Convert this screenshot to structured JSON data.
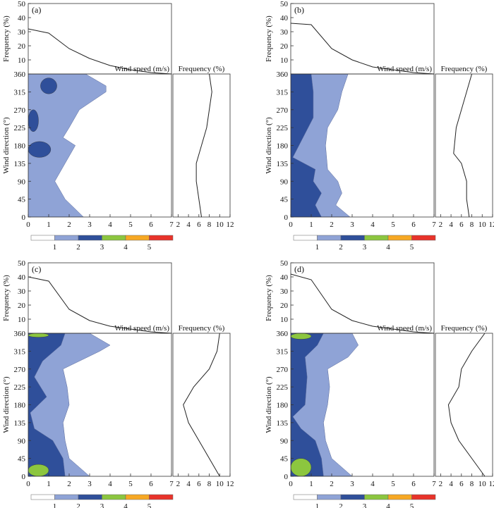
{
  "figure": {
    "colors": {
      "axis": "#333333",
      "zone1": "#ffffff",
      "zone2": "#8fa3d6",
      "zone3": "#2f4f9a",
      "zone4": "#8cc63f",
      "zone5": "#f7a823",
      "zone6": "#e8332a"
    }
  },
  "panels": [
    {
      "tag": "(a)",
      "top": {
        "ylabel": "Frequency (%)",
        "yticks": [
          "0",
          "10",
          "20",
          "30",
          "40",
          "50"
        ],
        "xlabel": "Wind speed (m/s)"
      },
      "main": {
        "ylabel": "Wind direction (°)",
        "yticks": [
          "0",
          "45",
          "90",
          "135",
          "180",
          "225",
          "270",
          "315",
          "360"
        ],
        "xticks": [
          "0",
          "1",
          "2",
          "3",
          "4",
          "5",
          "6",
          "7"
        ]
      },
      "right": {
        "title": "Frequency (%)",
        "xticks": [
          "2",
          "4",
          "6",
          "8",
          "10",
          "12"
        ]
      },
      "legend": {
        "labels": [
          "1",
          "2",
          "3",
          "4",
          "5"
        ]
      }
    },
    {
      "tag": "(b)",
      "top": {
        "ylabel": "Frequency (%)",
        "yticks": [
          "0",
          "10",
          "20",
          "30",
          "40",
          "50"
        ],
        "xlabel": "Wind speed (m/s)"
      },
      "main": {
        "ylabel": "Wind direction (°)",
        "yticks": [
          "0",
          "45",
          "90",
          "135",
          "180",
          "225",
          "270",
          "315",
          "360"
        ],
        "xticks": [
          "0",
          "1",
          "2",
          "3",
          "4",
          "5",
          "6",
          "7"
        ]
      },
      "right": {
        "title": "Frequency (%)",
        "xticks": [
          "2",
          "4",
          "6",
          "8",
          "10",
          "12"
        ]
      },
      "legend": {
        "labels": [
          "1",
          "2",
          "3",
          "4",
          "5"
        ]
      }
    },
    {
      "tag": "(c)",
      "top": {
        "ylabel": "Frequency (%)",
        "yticks": [
          "0",
          "10",
          "20",
          "30",
          "40",
          "50"
        ],
        "xlabel": "Wind speed (m/s)"
      },
      "main": {
        "ylabel": "Wind direction (°)",
        "yticks": [
          "0",
          "45",
          "90",
          "135",
          "180",
          "225",
          "270",
          "315",
          "360"
        ],
        "xticks": [
          "0",
          "1",
          "2",
          "3",
          "4",
          "5",
          "6",
          "7"
        ]
      },
      "right": {
        "title": "Frequency (%)",
        "xticks": [
          "2",
          "4",
          "6",
          "8",
          "10",
          "12"
        ]
      },
      "legend": {
        "labels": [
          "1",
          "2",
          "3",
          "4",
          "5"
        ]
      }
    },
    {
      "tag": "(d)",
      "top": {
        "ylabel": "Frequency (%)",
        "yticks": [
          "0",
          "10",
          "20",
          "30",
          "40",
          "50"
        ],
        "xlabel": "Wind speed (m/s)"
      },
      "main": {
        "ylabel": "Wind direction (°)",
        "yticks": [
          "0",
          "45",
          "90",
          "135",
          "180",
          "225",
          "270",
          "315",
          "360"
        ],
        "xticks": [
          "0",
          "1",
          "2",
          "3",
          "4",
          "5",
          "6",
          "7"
        ]
      },
      "right": {
        "title": "Frequency (%)",
        "xticks": [
          "2",
          "4",
          "6",
          "8",
          "10",
          "12"
        ]
      },
      "legend": {
        "labels": [
          "1",
          "2",
          "3",
          "4",
          "5"
        ]
      }
    }
  ],
  "chart_data": [
    {
      "panel": "(a)",
      "type": "contour",
      "top_line": {
        "x": [
          0,
          1,
          2,
          3,
          4,
          5,
          6,
          7
        ],
        "y": [
          32,
          29,
          18,
          11,
          6,
          3,
          1,
          0
        ],
        "ylim": [
          0,
          50
        ],
        "xlim": [
          0,
          7
        ]
      },
      "right_line": {
        "x": [
          6.5,
          6.0,
          5.5,
          5.5,
          6.5,
          7.5,
          8.0,
          8.5,
          8.0
        ],
        "y": [
          0,
          45,
          90,
          135,
          180,
          225,
          270,
          315,
          360
        ],
        "xlim": [
          1,
          12
        ],
        "ylim": [
          0,
          360
        ]
      },
      "level2_edge": {
        "dir": [
          0,
          45,
          90,
          135,
          180,
          200,
          225,
          270,
          315,
          330,
          360
        ],
        "speed": [
          2.7,
          1.8,
          1.3,
          1.8,
          2.3,
          1.7,
          2.0,
          2.5,
          3.8,
          3.8,
          2.8
        ]
      },
      "level3_blobs": [
        {
          "dir": [
            150,
            190
          ],
          "speed": [
            0,
            1.1
          ]
        },
        {
          "dir": [
            215,
            270
          ],
          "speed": [
            0,
            0.5
          ]
        },
        {
          "dir": [
            310,
            350
          ],
          "speed": [
            0.6,
            1.4
          ]
        }
      ]
    },
    {
      "panel": "(b)",
      "type": "contour",
      "top_line": {
        "x": [
          0,
          1,
          2,
          3,
          4,
          5,
          6,
          7
        ],
        "y": [
          36,
          35,
          18,
          10,
          5,
          3,
          1,
          0
        ],
        "ylim": [
          0,
          50
        ],
        "xlim": [
          0,
          7
        ]
      },
      "right_line": {
        "x": [
          7.5,
          7.0,
          7.0,
          6.0,
          4.5,
          5.0,
          6.0,
          7.0,
          8.0
        ],
        "y": [
          0,
          45,
          90,
          135,
          160,
          225,
          270,
          315,
          360
        ],
        "xlim": [
          1,
          12
        ],
        "ylim": [
          0,
          360
        ]
      },
      "level2_edge": {
        "dir": [
          0,
          30,
          60,
          90,
          120,
          180,
          225,
          270,
          315,
          360
        ],
        "speed": [
          2.9,
          2.2,
          2.5,
          2.3,
          1.8,
          1.7,
          1.8,
          2.3,
          2.5,
          2.8
        ]
      },
      "level3_edge": {
        "dir": [
          0,
          30,
          60,
          90,
          120,
          150,
          250,
          270,
          315,
          360
        ],
        "speed": [
          1.5,
          1.2,
          1.5,
          1.1,
          1.2,
          0.1,
          1.1,
          1.1,
          1.1,
          1.0
        ]
      }
    },
    {
      "panel": "(c)",
      "type": "contour",
      "top_line": {
        "x": [
          0,
          1,
          2,
          3,
          4,
          5,
          6,
          7
        ],
        "y": [
          40,
          37,
          17,
          9,
          5,
          3,
          1,
          0
        ],
        "ylim": [
          0,
          50
        ],
        "xlim": [
          0,
          7
        ]
      },
      "right_line": {
        "x": [
          10.0,
          8.0,
          6.0,
          4.0,
          3.0,
          5.0,
          8.0,
          9.5,
          10.0
        ],
        "y": [
          0,
          45,
          90,
          135,
          180,
          225,
          270,
          315,
          360
        ],
        "xlim": [
          1,
          12
        ],
        "ylim": [
          0,
          360
        ]
      },
      "level2_edge": {
        "dir": [
          0,
          45,
          90,
          135,
          180,
          225,
          270,
          315,
          330,
          360
        ],
        "speed": [
          3.0,
          2.0,
          1.8,
          1.7,
          2.0,
          1.9,
          1.7,
          3.5,
          4.0,
          3.0
        ]
      },
      "level3_edge": {
        "dir": [
          0,
          45,
          90,
          120,
          160,
          200,
          250,
          290,
          330,
          360
        ],
        "speed": [
          1.8,
          1.7,
          1.2,
          0.3,
          0.1,
          0.9,
          0.3,
          0.7,
          1.6,
          1.8
        ]
      },
      "level4_blobs": [
        {
          "dir": [
            0,
            30
          ],
          "speed": [
            0,
            1.0
          ]
        },
        {
          "dir": [
            350,
            360
          ],
          "speed": [
            0,
            1.0
          ]
        }
      ]
    },
    {
      "panel": "(d)",
      "type": "contour",
      "top_line": {
        "x": [
          0,
          1,
          2,
          3,
          4,
          5,
          6,
          7
        ],
        "y": [
          42,
          38,
          17,
          9,
          5,
          3,
          1,
          0
        ],
        "ylim": [
          0,
          50
        ],
        "xlim": [
          0,
          7
        ]
      },
      "right_line": {
        "x": [
          10.5,
          8.0,
          5.5,
          4.0,
          3.5,
          5.5,
          6.0,
          8.0,
          10.5
        ],
        "y": [
          0,
          45,
          90,
          135,
          180,
          225,
          270,
          315,
          360
        ],
        "xlim": [
          1,
          12
        ],
        "ylim": [
          0,
          360
        ]
      },
      "level2_edge": {
        "dir": [
          0,
          45,
          90,
          135,
          180,
          225,
          270,
          300,
          330,
          360
        ],
        "speed": [
          3.0,
          2.0,
          1.7,
          1.6,
          1.8,
          1.9,
          1.8,
          2.8,
          3.3,
          3.0
        ]
      },
      "level3_edge": {
        "dir": [
          0,
          45,
          90,
          120,
          150,
          180,
          250,
          300,
          330,
          360
        ],
        "speed": [
          1.6,
          1.5,
          1.2,
          0.5,
          0.1,
          0.7,
          0.8,
          0.7,
          1.3,
          1.6
        ]
      },
      "level4_blobs": [
        {
          "dir": [
            0,
            45
          ],
          "speed": [
            0,
            1.0
          ]
        },
        {
          "dir": [
            345,
            360
          ],
          "speed": [
            0,
            1.0
          ]
        }
      ]
    }
  ]
}
